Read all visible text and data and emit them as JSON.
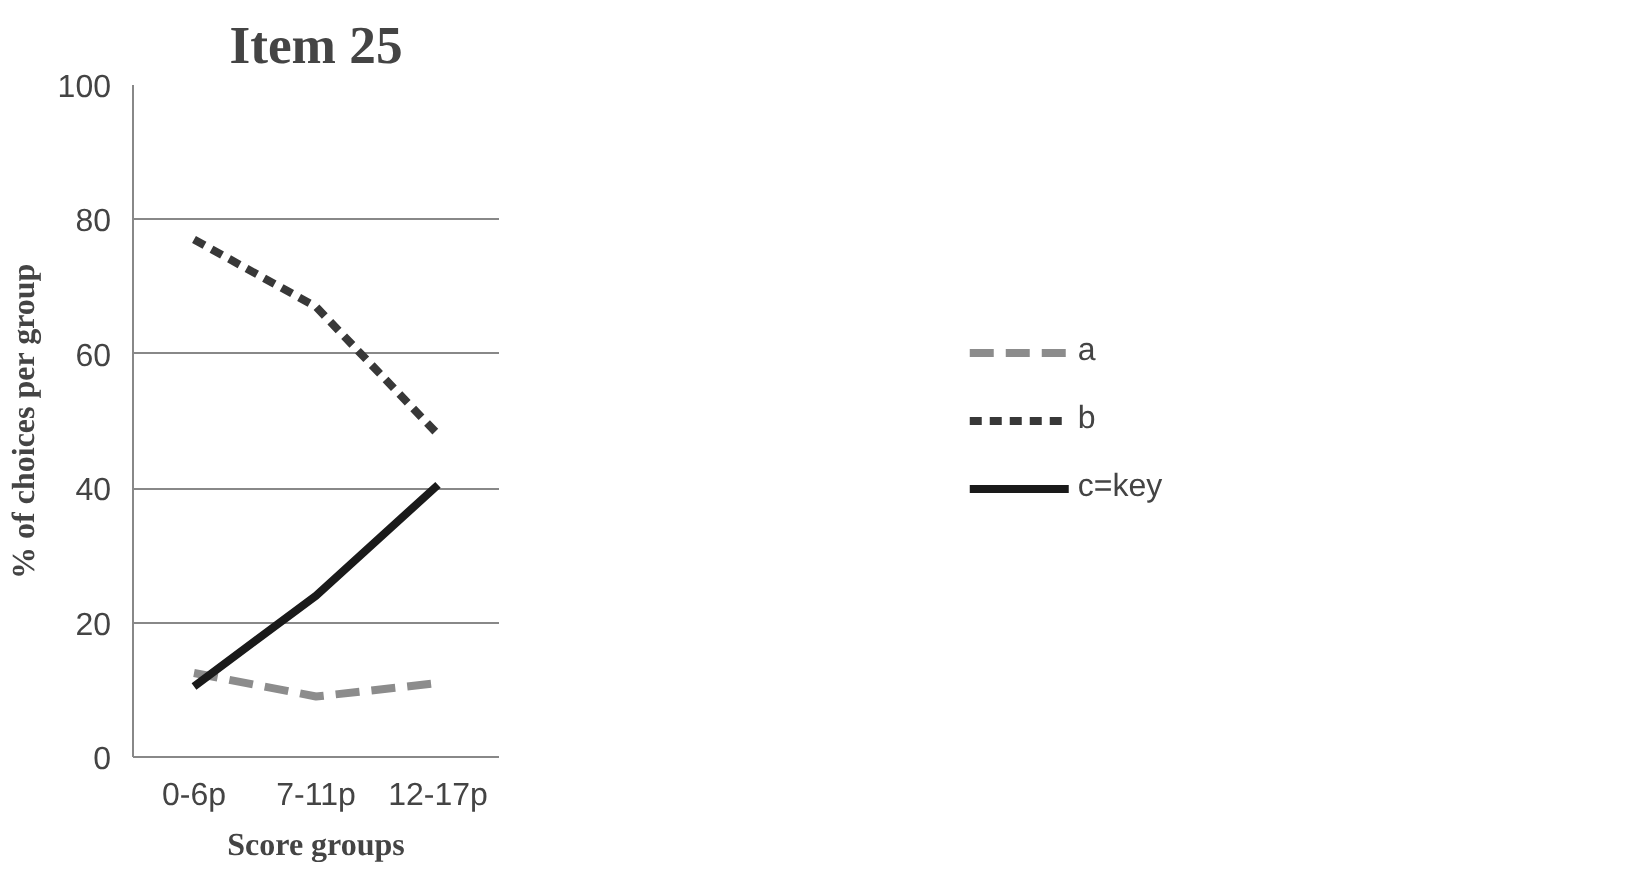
{
  "chart_data": {
    "type": "line",
    "title": "Item 25",
    "xlabel": "Score groups",
    "ylabel": "% of choices per group",
    "categories": [
      "0-6p",
      "7-11p",
      "12-17p"
    ],
    "series": [
      {
        "name": "a",
        "color": "#8c8c8c",
        "line_style": "dashed",
        "values": [
          12.5,
          9,
          11
        ]
      },
      {
        "name": "b",
        "color": "#383838",
        "line_style": "dotted",
        "values": [
          77,
          67,
          48
        ]
      },
      {
        "name": "c=key",
        "color": "#1a1a1a",
        "line_style": "solid",
        "values": [
          10.5,
          24,
          40.5
        ]
      }
    ],
    "ylim": [
      0,
      100
    ],
    "yticks": [
      0,
      20,
      40,
      60,
      80,
      100
    ],
    "grid": "y",
    "legend": "right",
    "marker": "none"
  }
}
